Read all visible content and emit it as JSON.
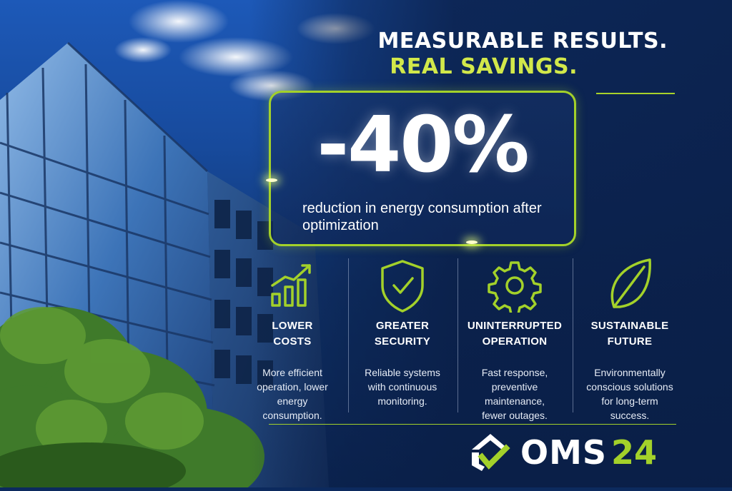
{
  "headline": {
    "line1": "MEASURABLE RESULTS.",
    "line2": "REAL SAVINGS."
  },
  "stat": {
    "value": "-40%",
    "caption": "reduction in energy consumption after optimization"
  },
  "features": [
    {
      "icon": "bar-chart-growth-icon",
      "title": "LOWER\nCOSTS",
      "description": "More efficient\noperation, lower\nenergy\nconsumption."
    },
    {
      "icon": "shield-check-icon",
      "title": "GREATER\nSECURITY",
      "description": "Reliable systems\nwith continuous\nmonitoring."
    },
    {
      "icon": "gear-icon",
      "title": "UNINTERRUPTED\nOPERATION",
      "description": "Fast response,\npreventive\nmaintenance,\nfewer outages."
    },
    {
      "icon": "leaf-icon",
      "title": "SUSTAINABLE\nFUTURE",
      "description": "Environmentally\nconscious solutions\nfor long-term\nsuccess."
    }
  ],
  "logo": {
    "text_primary": "OMS",
    "text_accent": "24"
  },
  "colors": {
    "accent": "#a3d12a",
    "headline_accent": "#d2e84a",
    "background": "#0c2a5e",
    "text": "#ffffff"
  }
}
